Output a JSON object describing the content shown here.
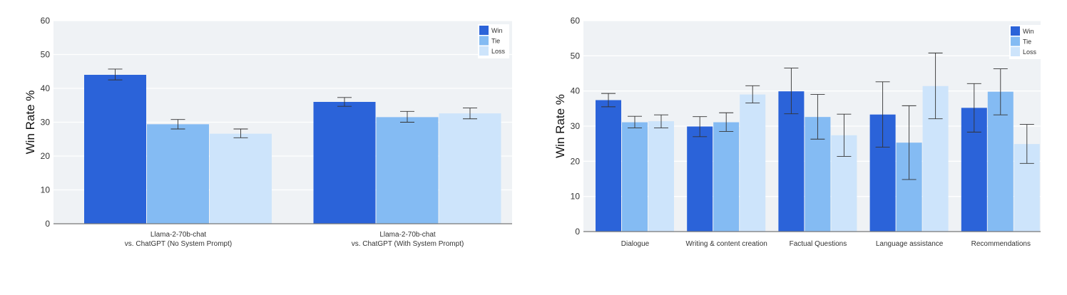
{
  "colors": {
    "win": "#2b63d9",
    "tie": "#84bbf3",
    "loss": "#cde4fb",
    "plot_bg": "#eff2f5",
    "grid": "#ffffff",
    "axis": "#777777",
    "errorbar": "#333333"
  },
  "chart_data": [
    {
      "type": "bar",
      "ylabel": "Win Rate %",
      "ylim": [
        0,
        60
      ],
      "yticks": [
        "0",
        "10",
        "20",
        "30",
        "40",
        "50",
        "60"
      ],
      "grid": true,
      "legend_position": "top-right",
      "categories": [
        [
          "Llama-2-70b-chat",
          "vs. ChatGPT (No System Prompt)"
        ],
        [
          "Llama-2-70b-chat",
          "vs. ChatGPT (With System Prompt)"
        ]
      ],
      "series": [
        {
          "name": "Win",
          "values": [
            44.0,
            36.0
          ],
          "err_low": [
            42.5,
            34.7
          ],
          "err_high": [
            45.7,
            37.3
          ]
        },
        {
          "name": "Tie",
          "values": [
            29.4,
            31.5
          ],
          "err_low": [
            28.0,
            30.0
          ],
          "err_high": [
            30.8,
            33.2
          ]
        },
        {
          "name": "Loss",
          "values": [
            26.6,
            32.6
          ],
          "err_low": [
            25.4,
            31.0
          ],
          "err_high": [
            28.0,
            34.2
          ]
        }
      ]
    },
    {
      "type": "bar",
      "ylabel": "Win Rate %",
      "ylim": [
        0,
        60
      ],
      "yticks": [
        "0",
        "10",
        "20",
        "30",
        "40",
        "50",
        "60"
      ],
      "grid": true,
      "legend_position": "top-right",
      "categories": [
        [
          "Dialogue"
        ],
        [
          "Writing & content creation"
        ],
        [
          "Factual Questions"
        ],
        [
          "Language assistance"
        ],
        [
          "Recommendations"
        ]
      ],
      "series": [
        {
          "name": "Win",
          "values": [
            37.4,
            29.9,
            39.9,
            33.3,
            35.2
          ],
          "err_low": [
            35.5,
            27.0,
            33.5,
            24.0,
            28.3
          ],
          "err_high": [
            39.3,
            32.7,
            46.5,
            42.6,
            42.1
          ]
        },
        {
          "name": "Tie",
          "values": [
            31.1,
            31.1,
            32.6,
            25.3,
            39.8
          ],
          "err_low": [
            29.5,
            28.5,
            26.3,
            14.8,
            33.2
          ],
          "err_high": [
            32.8,
            33.8,
            39.0,
            35.8,
            46.3
          ]
        },
        {
          "name": "Loss",
          "values": [
            31.4,
            39.0,
            27.4,
            41.4,
            24.9
          ],
          "err_low": [
            29.5,
            36.6,
            21.4,
            32.1,
            19.4
          ],
          "err_high": [
            33.2,
            41.5,
            33.4,
            50.8,
            30.5
          ]
        }
      ]
    }
  ]
}
